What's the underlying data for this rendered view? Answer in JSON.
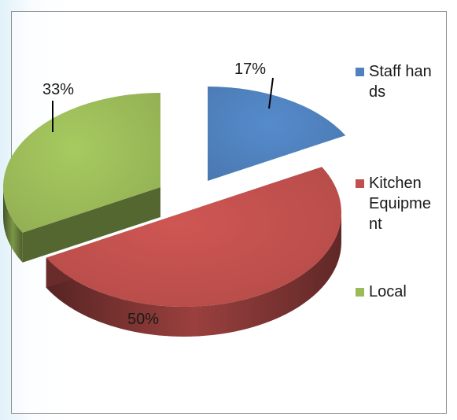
{
  "chart_data": {
    "type": "pie",
    "style": "3d-exploded",
    "categories": [
      "Staff hands",
      "Kitchen Equipment",
      "Local"
    ],
    "values": [
      17,
      50,
      33
    ],
    "data_labels": [
      "17%",
      "50%",
      "33%"
    ],
    "colors": [
      "#4f81bd",
      "#c0504d",
      "#9bbb59"
    ],
    "legend_position": "right",
    "legend": {
      "items": [
        {
          "label": "Staff hands",
          "color": "#4f81bd"
        },
        {
          "label": "Kitchen Equipment",
          "color": "#c0504d"
        },
        {
          "label": "Local",
          "color": "#9bbb59"
        }
      ]
    }
  }
}
